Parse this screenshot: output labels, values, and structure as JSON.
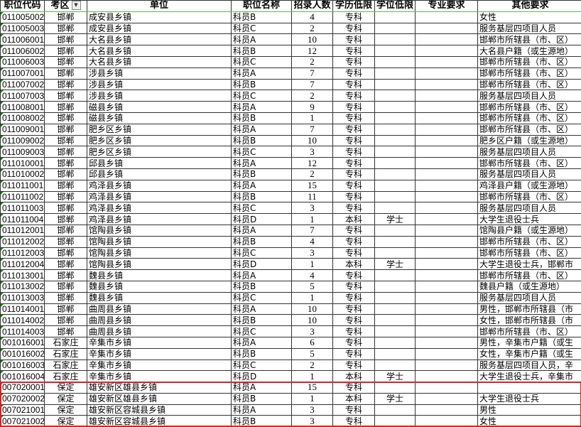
{
  "headers": [
    "职位代码",
    "考区",
    "单位",
    "职位名称",
    "招录人数",
    "学历低限",
    "学位低限",
    "专业要求",
    "其他要求"
  ],
  "filter_icon": "dropdown-filter-icon",
  "highlight_color": "#e02020",
  "rows": [
    [
      "011005002",
      "邯郸",
      "成安县乡镇",
      "科员B",
      "4",
      "专科",
      "",
      "",
      "女性"
    ],
    [
      "011005003",
      "邯郸",
      "成安县乡镇",
      "科员C",
      "2",
      "专科",
      "",
      "",
      "服务基层四项目人员"
    ],
    [
      "011006001",
      "邯郸",
      "大名县乡镇",
      "科员A",
      "10",
      "专科",
      "",
      "",
      "邯郸市所辖县（市、区）"
    ],
    [
      "011006002",
      "邯郸",
      "大名县乡镇",
      "科员B",
      "12",
      "专科",
      "",
      "",
      "大名县户籍（或生源地）"
    ],
    [
      "011006003",
      "邯郸",
      "大名县乡镇",
      "科员C",
      "2",
      "专科",
      "",
      "",
      "邯郸市所辖县（市、区）"
    ],
    [
      "011007001",
      "邯郸",
      "涉县乡镇",
      "科员A",
      "7",
      "专科",
      "",
      "",
      "邯郸市所辖县（市、区）"
    ],
    [
      "011007002",
      "邯郸",
      "涉县乡镇",
      "科员B",
      "7",
      "专科",
      "",
      "",
      "邯郸市所辖县（市、区）"
    ],
    [
      "011007003",
      "邯郸",
      "涉县乡镇",
      "科员C",
      "2",
      "专科",
      "",
      "",
      "服务基层四项目人员"
    ],
    [
      "011008001",
      "邯郸",
      "磁县乡镇",
      "科员A",
      "9",
      "专科",
      "",
      "",
      "邯郸市所辖县（市、区）"
    ],
    [
      "011008002",
      "邯郸",
      "磁县乡镇",
      "科员B",
      "1",
      "专科",
      "",
      "",
      "邯郸市所辖县（市、区）"
    ],
    [
      "011009001",
      "邯郸",
      "肥乡区乡镇",
      "科员A",
      "7",
      "专科",
      "",
      "",
      "邯郸市所辖县（市、区）"
    ],
    [
      "011009002",
      "邯郸",
      "肥乡区乡镇",
      "科员B",
      "10",
      "专科",
      "",
      "",
      "肥乡区户籍（或生源地）"
    ],
    [
      "011009003",
      "邯郸",
      "肥乡区乡镇",
      "科员C",
      "3",
      "专科",
      "",
      "",
      "服务基层四项目人员"
    ],
    [
      "011010001",
      "邯郸",
      "邱县乡镇",
      "科员A",
      "12",
      "专科",
      "",
      "",
      "邯郸市所辖县（市、区）"
    ],
    [
      "011010002",
      "邯郸",
      "邱县乡镇",
      "科员B",
      "2",
      "专科",
      "",
      "",
      "服务基层四项目人员"
    ],
    [
      "011011001",
      "邯郸",
      "鸡泽县乡镇",
      "科员A",
      "15",
      "专科",
      "",
      "",
      "鸡泽县户籍（或生源地）"
    ],
    [
      "011011002",
      "邯郸",
      "鸡泽县乡镇",
      "科员B",
      "11",
      "专科",
      "",
      "",
      "邯郸市所辖县（市、区）"
    ],
    [
      "011011003",
      "邯郸",
      "鸡泽县乡镇",
      "科员C",
      "3",
      "专科",
      "",
      "",
      "服务基层四项目人员"
    ],
    [
      "011011004",
      "邯郸",
      "鸡泽县乡镇",
      "科员D",
      "1",
      "本科",
      "学士",
      "",
      "大学生退役士兵"
    ],
    [
      "011012001",
      "邯郸",
      "馆陶县乡镇",
      "科员A",
      "7",
      "专科",
      "",
      "",
      "馆陶县户籍（或生源地）"
    ],
    [
      "011012002",
      "邯郸",
      "馆陶县乡镇",
      "科员B",
      "4",
      "专科",
      "",
      "",
      "邯郸市所辖县（市、区）"
    ],
    [
      "011012003",
      "邯郸",
      "馆陶县乡镇",
      "科员C",
      "3",
      "专科",
      "",
      "",
      "邯郸市所辖县（市、区）"
    ],
    [
      "011012004",
      "邯郸",
      "馆陶县乡镇",
      "科员D",
      "1",
      "本科",
      "学士",
      "",
      "大学生退役士兵，邯郸市"
    ],
    [
      "011013001",
      "邯郸",
      "魏县乡镇",
      "科员A",
      "4",
      "专科",
      "",
      "",
      "邯郸市所辖县（市、区）"
    ],
    [
      "011013002",
      "邯郸",
      "魏县乡镇",
      "科员B",
      "5",
      "专科",
      "",
      "",
      "魏县户籍（或生源地）"
    ],
    [
      "011013003",
      "邯郸",
      "魏县乡镇",
      "科员C",
      "1",
      "专科",
      "",
      "",
      "服务基层四项目人员"
    ],
    [
      "011014001",
      "邯郸",
      "曲周县乡镇",
      "科员A",
      "10",
      "专科",
      "",
      "",
      "男性，邯郸市所辖县（市"
    ],
    [
      "011014002",
      "邯郸",
      "曲周县乡镇",
      "科员B",
      "10",
      "专科",
      "",
      "",
      "女性，邯郸市所辖县（市"
    ],
    [
      "011014003",
      "邯郸",
      "曲周县乡镇",
      "科员C",
      "3",
      "专科",
      "",
      "",
      "邯郸市所辖县（市、区）"
    ],
    [
      "001016001",
      "石家庄",
      "辛集市乡镇",
      "科员A",
      "6",
      "专科",
      "",
      "",
      "男性，辛集市户籍（或生"
    ],
    [
      "001016002",
      "石家庄",
      "辛集市乡镇",
      "科员B",
      "5",
      "专科",
      "",
      "",
      "女性，辛集市户籍（或生"
    ],
    [
      "001016003",
      "石家庄",
      "辛集市乡镇",
      "科员C",
      "2",
      "专科",
      "",
      "",
      "服务基层四项目人员，辛"
    ],
    [
      "001016004",
      "石家庄",
      "辛集市乡镇",
      "科员D",
      "1",
      "本科",
      "学士",
      "",
      "大学生退役士兵，辛集市"
    ],
    [
      "007020001",
      "保定",
      "雄安新区雄县乡镇",
      "科员A",
      "15",
      "专科",
      "",
      "",
      ""
    ],
    [
      "007020002",
      "保定",
      "雄安新区雄县乡镇",
      "科员B",
      "1",
      "本科",
      "学士",
      "",
      "大学生退役士兵"
    ],
    [
      "007021001",
      "保定",
      "雄安新区容城县乡镇",
      "科员A",
      "3",
      "专科",
      "",
      "",
      "男性"
    ],
    [
      "007021002",
      "保定",
      "雄安新区容城县乡镇",
      "科员B",
      "3",
      "专科",
      "",
      "",
      "女性"
    ]
  ]
}
